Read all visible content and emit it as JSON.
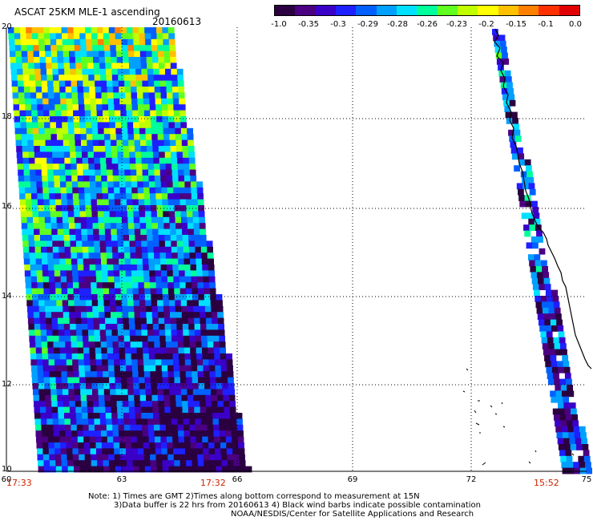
{
  "header": {
    "title": "ASCAT 25KM MLE-1 ascending",
    "date": "20160613"
  },
  "colorbar": {
    "tick_labels": [
      "-1.0",
      "-0.35",
      "-0.3",
      "-0.29",
      "-0.28",
      "-0.26",
      "-0.23",
      "-0.2",
      "-0.15",
      "-0.1",
      "0.0"
    ],
    "colors": [
      "#2a0040",
      "#4b0082",
      "#3a00c8",
      "#1e20ff",
      "#0060ff",
      "#00a0ff",
      "#00e0ff",
      "#00ff9a",
      "#60ff20",
      "#c0ff00",
      "#ffff00",
      "#ffc000",
      "#ff8000",
      "#ff3000",
      "#e00000"
    ]
  },
  "map": {
    "latitude_labels": [
      "20",
      "18",
      "16",
      "14",
      "12",
      "10"
    ],
    "longitude_labels": [
      "60",
      "63",
      "66",
      "69",
      "72",
      "75"
    ],
    "time_labels": [
      "17:33",
      "17:32",
      "15:52"
    ],
    "grid": true,
    "swaths": [
      {
        "name": "western-swath",
        "time_start": "17:33",
        "time_end": "17:32"
      },
      {
        "name": "coastal-swath",
        "time_start": "15:52"
      }
    ]
  },
  "notes": {
    "line1": "Note: 1) Times are GMT 2)Times along bottom correspond to measurement at 15N",
    "line2": "3)Data buffer is 22 hrs from 20160613 4) Black wind barbs indicate possible contamination",
    "line3": "NOAA/NESDIS/Center for Satellite Applications and Research"
  }
}
